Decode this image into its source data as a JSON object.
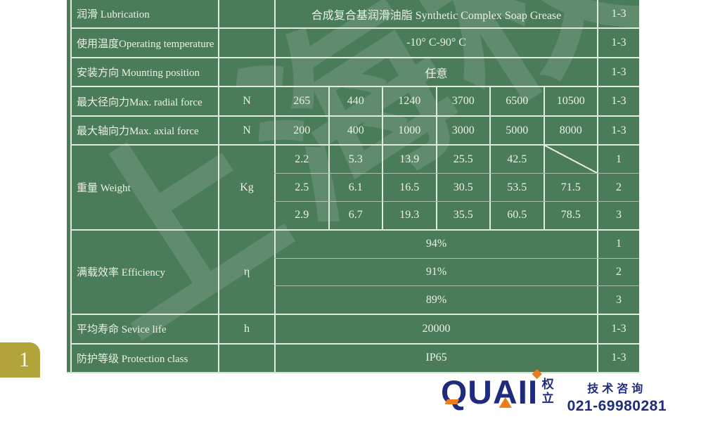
{
  "colors": {
    "table_green": "#4a7c59",
    "grid_line": "#dfecdc",
    "table_text": "#eaf1e4",
    "page_tab_gold": "#b3a33b",
    "logo_navy": "#1f2b7d",
    "logo_orange": "#ed7c1c"
  },
  "watermark": {
    "text": "上海权立"
  },
  "table": {
    "simple_rows": [
      {
        "label": "润滑 Lubrication",
        "unit": "",
        "value": "合成复合基润滑油脂 Synthetic Complex Soap Grease",
        "cls": "1-3"
      },
      {
        "label": "使用温度Operating temperature",
        "unit": "",
        "value": "-10° C-90° C",
        "cls": "1-3"
      },
      {
        "label": "安装方向 Mounting position",
        "unit": "",
        "value": "任意",
        "cls": "1-3"
      }
    ],
    "force_rows": [
      {
        "label": "最大径向力Max. radial force",
        "unit": "N",
        "values": [
          "265",
          "440",
          "1240",
          "3700",
          "6500",
          "10500"
        ],
        "cls": "1-3"
      },
      {
        "label": "最大轴向力Max. axial force",
        "unit": "N",
        "values": [
          "200",
          "400",
          "1000",
          "3000",
          "5000",
          "8000"
        ],
        "cls": "1-3"
      }
    ],
    "weight_group": {
      "label": "重量 Weight",
      "unit": "Kg",
      "rows": [
        {
          "values": [
            "2.2",
            "5.3",
            "13.9",
            "25.5",
            "42.5"
          ],
          "last_cell": "diagonal-empty",
          "cls": "1"
        },
        {
          "values": [
            "2.5",
            "6.1",
            "16.5",
            "30.5",
            "53.5",
            "71.5"
          ],
          "cls": "2"
        },
        {
          "values": [
            "2.9",
            "6.7",
            "19.3",
            "35.5",
            "60.5",
            "78.5"
          ],
          "cls": "3"
        }
      ]
    },
    "efficiency_group": {
      "label": "满载效率 Efficiency",
      "unit": "η",
      "rows": [
        {
          "value": "94%",
          "cls": "1"
        },
        {
          "value": "91%",
          "cls": "2"
        },
        {
          "value": "89%",
          "cls": "3"
        }
      ]
    },
    "life_row": {
      "label": "平均寿命 Sevice life",
      "unit": "h",
      "value": "20000",
      "cls": "1-3"
    },
    "protection_row": {
      "label": "防护等级 Protection class",
      "unit": "",
      "value": "IP65",
      "cls": "1-3"
    }
  },
  "page_marker": {
    "number": "1"
  },
  "footer": {
    "brand": "QUAII",
    "brand_cn": "权立",
    "tagline": "技术咨询",
    "phone": "021-69980281"
  }
}
